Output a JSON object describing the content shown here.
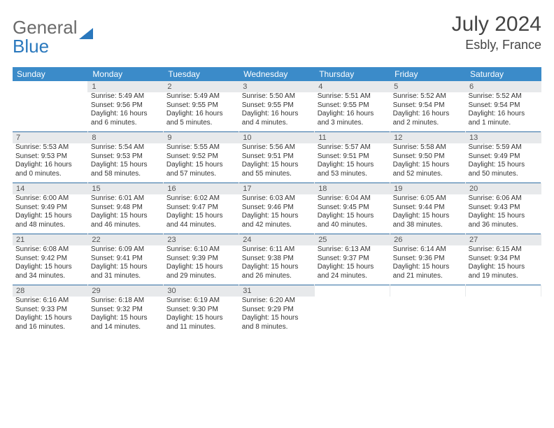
{
  "brand": {
    "part1": "General",
    "part2": "Blue"
  },
  "title": "July 2024",
  "location": "Esbly, France",
  "colors": {
    "header_bg": "#3b8bc9",
    "header_text": "#ffffff",
    "daynum_bg": "#e7e9eb",
    "daynum_text": "#555555",
    "rule": "#2f6da3",
    "brand_gray": "#6a6a6a",
    "brand_blue": "#2a78bd",
    "body_text": "#333333",
    "page_bg": "#ffffff"
  },
  "typography": {
    "month_title_pt": 30,
    "location_pt": 18,
    "day_header_pt": 12,
    "daynum_pt": 11,
    "cell_text_pt": 10,
    "logo_pt": 26
  },
  "calendar": {
    "type": "table",
    "columns": 7,
    "day_names": [
      "Sunday",
      "Monday",
      "Tuesday",
      "Wednesday",
      "Thursday",
      "Friday",
      "Saturday"
    ],
    "weeks": [
      {
        "days": [
          {
            "num": "",
            "lines": []
          },
          {
            "num": "1",
            "lines": [
              "Sunrise: 5:49 AM",
              "Sunset: 9:56 PM",
              "Daylight: 16 hours and 6 minutes."
            ]
          },
          {
            "num": "2",
            "lines": [
              "Sunrise: 5:49 AM",
              "Sunset: 9:55 PM",
              "Daylight: 16 hours and 5 minutes."
            ]
          },
          {
            "num": "3",
            "lines": [
              "Sunrise: 5:50 AM",
              "Sunset: 9:55 PM",
              "Daylight: 16 hours and 4 minutes."
            ]
          },
          {
            "num": "4",
            "lines": [
              "Sunrise: 5:51 AM",
              "Sunset: 9:55 PM",
              "Daylight: 16 hours and 3 minutes."
            ]
          },
          {
            "num": "5",
            "lines": [
              "Sunrise: 5:52 AM",
              "Sunset: 9:54 PM",
              "Daylight: 16 hours and 2 minutes."
            ]
          },
          {
            "num": "6",
            "lines": [
              "Sunrise: 5:52 AM",
              "Sunset: 9:54 PM",
              "Daylight: 16 hours and 1 minute."
            ]
          }
        ]
      },
      {
        "days": [
          {
            "num": "7",
            "lines": [
              "Sunrise: 5:53 AM",
              "Sunset: 9:53 PM",
              "Daylight: 16 hours and 0 minutes."
            ]
          },
          {
            "num": "8",
            "lines": [
              "Sunrise: 5:54 AM",
              "Sunset: 9:53 PM",
              "Daylight: 15 hours and 58 minutes."
            ]
          },
          {
            "num": "9",
            "lines": [
              "Sunrise: 5:55 AM",
              "Sunset: 9:52 PM",
              "Daylight: 15 hours and 57 minutes."
            ]
          },
          {
            "num": "10",
            "lines": [
              "Sunrise: 5:56 AM",
              "Sunset: 9:51 PM",
              "Daylight: 15 hours and 55 minutes."
            ]
          },
          {
            "num": "11",
            "lines": [
              "Sunrise: 5:57 AM",
              "Sunset: 9:51 PM",
              "Daylight: 15 hours and 53 minutes."
            ]
          },
          {
            "num": "12",
            "lines": [
              "Sunrise: 5:58 AM",
              "Sunset: 9:50 PM",
              "Daylight: 15 hours and 52 minutes."
            ]
          },
          {
            "num": "13",
            "lines": [
              "Sunrise: 5:59 AM",
              "Sunset: 9:49 PM",
              "Daylight: 15 hours and 50 minutes."
            ]
          }
        ]
      },
      {
        "days": [
          {
            "num": "14",
            "lines": [
              "Sunrise: 6:00 AM",
              "Sunset: 9:49 PM",
              "Daylight: 15 hours and 48 minutes."
            ]
          },
          {
            "num": "15",
            "lines": [
              "Sunrise: 6:01 AM",
              "Sunset: 9:48 PM",
              "Daylight: 15 hours and 46 minutes."
            ]
          },
          {
            "num": "16",
            "lines": [
              "Sunrise: 6:02 AM",
              "Sunset: 9:47 PM",
              "Daylight: 15 hours and 44 minutes."
            ]
          },
          {
            "num": "17",
            "lines": [
              "Sunrise: 6:03 AM",
              "Sunset: 9:46 PM",
              "Daylight: 15 hours and 42 minutes."
            ]
          },
          {
            "num": "18",
            "lines": [
              "Sunrise: 6:04 AM",
              "Sunset: 9:45 PM",
              "Daylight: 15 hours and 40 minutes."
            ]
          },
          {
            "num": "19",
            "lines": [
              "Sunrise: 6:05 AM",
              "Sunset: 9:44 PM",
              "Daylight: 15 hours and 38 minutes."
            ]
          },
          {
            "num": "20",
            "lines": [
              "Sunrise: 6:06 AM",
              "Sunset: 9:43 PM",
              "Daylight: 15 hours and 36 minutes."
            ]
          }
        ]
      },
      {
        "days": [
          {
            "num": "21",
            "lines": [
              "Sunrise: 6:08 AM",
              "Sunset: 9:42 PM",
              "Daylight: 15 hours and 34 minutes."
            ]
          },
          {
            "num": "22",
            "lines": [
              "Sunrise: 6:09 AM",
              "Sunset: 9:41 PM",
              "Daylight: 15 hours and 31 minutes."
            ]
          },
          {
            "num": "23",
            "lines": [
              "Sunrise: 6:10 AM",
              "Sunset: 9:39 PM",
              "Daylight: 15 hours and 29 minutes."
            ]
          },
          {
            "num": "24",
            "lines": [
              "Sunrise: 6:11 AM",
              "Sunset: 9:38 PM",
              "Daylight: 15 hours and 26 minutes."
            ]
          },
          {
            "num": "25",
            "lines": [
              "Sunrise: 6:13 AM",
              "Sunset: 9:37 PM",
              "Daylight: 15 hours and 24 minutes."
            ]
          },
          {
            "num": "26",
            "lines": [
              "Sunrise: 6:14 AM",
              "Sunset: 9:36 PM",
              "Daylight: 15 hours and 21 minutes."
            ]
          },
          {
            "num": "27",
            "lines": [
              "Sunrise: 6:15 AM",
              "Sunset: 9:34 PM",
              "Daylight: 15 hours and 19 minutes."
            ]
          }
        ]
      },
      {
        "days": [
          {
            "num": "28",
            "lines": [
              "Sunrise: 6:16 AM",
              "Sunset: 9:33 PM",
              "Daylight: 15 hours and 16 minutes."
            ]
          },
          {
            "num": "29",
            "lines": [
              "Sunrise: 6:18 AM",
              "Sunset: 9:32 PM",
              "Daylight: 15 hours and 14 minutes."
            ]
          },
          {
            "num": "30",
            "lines": [
              "Sunrise: 6:19 AM",
              "Sunset: 9:30 PM",
              "Daylight: 15 hours and 11 minutes."
            ]
          },
          {
            "num": "31",
            "lines": [
              "Sunrise: 6:20 AM",
              "Sunset: 9:29 PM",
              "Daylight: 15 hours and 8 minutes."
            ]
          },
          {
            "num": "",
            "lines": []
          },
          {
            "num": "",
            "lines": []
          },
          {
            "num": "",
            "lines": []
          }
        ]
      }
    ]
  }
}
